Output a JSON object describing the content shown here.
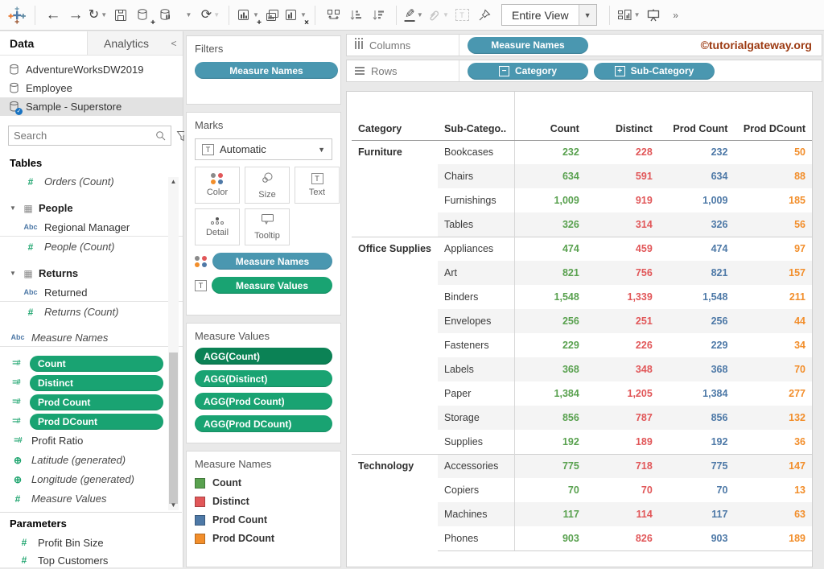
{
  "toolbar": {
    "view_mode": "Entire View",
    "icons": [
      "tableau-logo",
      "undo",
      "redo",
      "replay",
      "save",
      "new-datasource",
      "pause-updates",
      "refresh",
      "new-worksheet",
      "duplicate-sheet",
      "clear-sheet",
      "swap-rows-columns",
      "sort-ascending",
      "sort-descending",
      "highlight",
      "group-members",
      "label",
      "fix-axes",
      "show-cards",
      "presentation-mode",
      "overflow"
    ]
  },
  "watermark": "©tutorialgateway.org",
  "sidebar": {
    "tabs": {
      "data": "Data",
      "analytics": "Analytics",
      "collapse": "<"
    },
    "datasources": [
      "AdventureWorksDW2019",
      "Employee",
      "Sample - Superstore"
    ],
    "search_placeholder": "Search",
    "tables_header": "Tables",
    "fields": [
      {
        "t": "field",
        "icon": "hash",
        "label": "Orders (Count)",
        "italic": true,
        "indent": 2
      },
      {
        "t": "group",
        "label": "People"
      },
      {
        "t": "field",
        "icon": "abc",
        "label": "Regional Manager",
        "indent": 2,
        "divider": true
      },
      {
        "t": "field",
        "icon": "hash",
        "label": "People (Count)",
        "italic": true,
        "indent": 2
      },
      {
        "t": "group",
        "label": "Returns"
      },
      {
        "t": "field",
        "icon": "abc",
        "label": "Returned",
        "indent": 2,
        "divider": true
      },
      {
        "t": "field",
        "icon": "hash",
        "label": "Returns (Count)",
        "italic": true,
        "indent": 2
      },
      {
        "t": "field",
        "icon": "abc",
        "label": "Measure Names",
        "italic": true,
        "indent": 1,
        "gap": true,
        "divider": true
      },
      {
        "t": "pill",
        "icon": "calc",
        "label": "Count",
        "gap": true
      },
      {
        "t": "pill",
        "icon": "calc",
        "label": "Distinct"
      },
      {
        "t": "pill",
        "icon": "calc",
        "label": "Prod Count"
      },
      {
        "t": "pill",
        "icon": "calc",
        "label": "Prod DCount"
      },
      {
        "t": "field",
        "icon": "calc",
        "label": "Profit Ratio",
        "indent": 1
      },
      {
        "t": "field",
        "icon": "globe",
        "label": "Latitude (generated)",
        "italic": true,
        "indent": 1
      },
      {
        "t": "field",
        "icon": "globe",
        "label": "Longitude (generated)",
        "italic": true,
        "indent": 1
      },
      {
        "t": "field",
        "icon": "hash",
        "label": "Measure Values",
        "italic": true,
        "indent": 1
      }
    ],
    "parameters_header": "Parameters",
    "parameters": [
      "Profit Bin Size",
      "Top Customers"
    ]
  },
  "filters": {
    "title": "Filters",
    "pill": "Measure Names"
  },
  "marks": {
    "title": "Marks",
    "mark_type": "Automatic",
    "buttons": [
      "Color",
      "Size",
      "Text",
      "Detail",
      "Tooltip"
    ],
    "pill_rows": [
      {
        "label": "Measure Names",
        "color": "blue"
      },
      {
        "label": "Measure Values",
        "color": "green"
      }
    ]
  },
  "measure_values": {
    "title": "Measure Values",
    "pills": [
      "AGG(Count)",
      "AGG(Distinct)",
      "AGG(Prod Count)",
      "AGG(Prod DCount)"
    ]
  },
  "legend": {
    "title": "Measure Names",
    "items": [
      {
        "label": "Count",
        "color": "#59A14F"
      },
      {
        "label": "Distinct",
        "color": "#E15759"
      },
      {
        "label": "Prod Count",
        "color": "#4E79A7"
      },
      {
        "label": "Prod DCount",
        "color": "#F28E2B"
      }
    ]
  },
  "shelves": {
    "columns_label": "Columns",
    "rows_label": "Rows",
    "columns_pills": [
      {
        "label": "Measure Names"
      }
    ],
    "rows_pills": [
      {
        "label": "Category",
        "prefix": "−"
      },
      {
        "label": "Sub-Category",
        "prefix": "+"
      }
    ]
  },
  "table": {
    "headers": [
      "Category",
      "Sub-Catego..",
      "Count",
      "Distinct",
      "Prod Count",
      "Prod DCount"
    ],
    "palette": [
      "#59A14F",
      "#E15759",
      "#4E79A7",
      "#F28E2B"
    ],
    "groups": [
      {
        "category": "Furniture",
        "rows": [
          {
            "sub": "Bookcases",
            "values": [
              "232",
              "228",
              "232",
              "50"
            ]
          },
          {
            "sub": "Chairs",
            "values": [
              "634",
              "591",
              "634",
              "88"
            ]
          },
          {
            "sub": "Furnishings",
            "values": [
              "1,009",
              "919",
              "1,009",
              "185"
            ]
          },
          {
            "sub": "Tables",
            "values": [
              "326",
              "314",
              "326",
              "56"
            ]
          }
        ]
      },
      {
        "category": "Office Supplies",
        "rows": [
          {
            "sub": "Appliances",
            "values": [
              "474",
              "459",
              "474",
              "97"
            ]
          },
          {
            "sub": "Art",
            "values": [
              "821",
              "756",
              "821",
              "157"
            ]
          },
          {
            "sub": "Binders",
            "values": [
              "1,548",
              "1,339",
              "1,548",
              "211"
            ]
          },
          {
            "sub": "Envelopes",
            "values": [
              "256",
              "251",
              "256",
              "44"
            ]
          },
          {
            "sub": "Fasteners",
            "values": [
              "229",
              "226",
              "229",
              "34"
            ]
          },
          {
            "sub": "Labels",
            "values": [
              "368",
              "348",
              "368",
              "70"
            ]
          },
          {
            "sub": "Paper",
            "values": [
              "1,384",
              "1,205",
              "1,384",
              "277"
            ]
          },
          {
            "sub": "Storage",
            "values": [
              "856",
              "787",
              "856",
              "132"
            ]
          },
          {
            "sub": "Supplies",
            "values": [
              "192",
              "189",
              "192",
              "36"
            ]
          }
        ]
      },
      {
        "category": "Technology",
        "rows": [
          {
            "sub": "Accessories",
            "values": [
              "775",
              "718",
              "775",
              "147"
            ]
          },
          {
            "sub": "Copiers",
            "values": [
              "70",
              "70",
              "70",
              "13"
            ]
          },
          {
            "sub": "Machines",
            "values": [
              "117",
              "114",
              "117",
              "63"
            ]
          },
          {
            "sub": "Phones",
            "values": [
              "903",
              "826",
              "903",
              "189"
            ]
          }
        ]
      }
    ]
  }
}
